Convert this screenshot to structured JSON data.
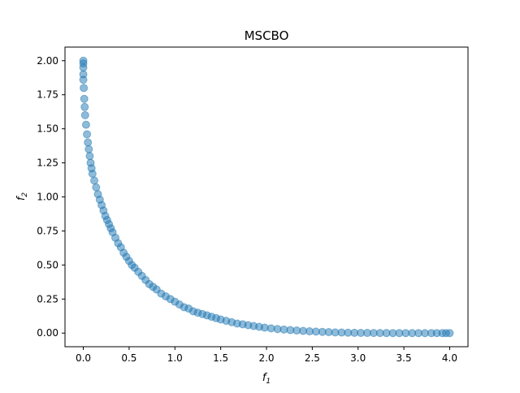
{
  "chart_data": {
    "type": "scatter",
    "title": "MSCBO",
    "xlabel_main": "f",
    "xlabel_sub": "1",
    "ylabel_main": "f",
    "ylabel_sub": "2",
    "xlim": [
      -0.2,
      4.2
    ],
    "ylim": [
      -0.1,
      2.1
    ],
    "xticks": [
      0.0,
      0.5,
      1.0,
      1.5,
      2.0,
      2.5,
      3.0,
      3.5,
      4.0
    ],
    "xtick_labels": [
      "0.0",
      "0.5",
      "1.0",
      "1.5",
      "2.0",
      "2.5",
      "3.0",
      "3.5",
      "4.0"
    ],
    "yticks": [
      0.0,
      0.25,
      0.5,
      0.75,
      1.0,
      1.25,
      1.5,
      1.75,
      2.0
    ],
    "ytick_labels": [
      "0.00",
      "0.25",
      "0.50",
      "0.75",
      "1.00",
      "1.25",
      "1.50",
      "1.75",
      "2.00"
    ],
    "grid": false,
    "marker_color": "#1f77b4",
    "marker_alpha": 0.5,
    "front_curve": "f2 = (sqrt(2) - sqrt(f1/2))^2",
    "series": [
      {
        "x_values": [
          0.0,
          0.0,
          0.0,
          0.0,
          0.0,
          0.005,
          0.01,
          0.015,
          0.02,
          0.03,
          0.04,
          0.05,
          0.06,
          0.07,
          0.08,
          0.09,
          0.1,
          0.12,
          0.14,
          0.16,
          0.18,
          0.2,
          0.22,
          0.24,
          0.26,
          0.28,
          0.3,
          0.32,
          0.35,
          0.38,
          0.41,
          0.44,
          0.47,
          0.5,
          0.53,
          0.56,
          0.6,
          0.64,
          0.68,
          0.72,
          0.76,
          0.8,
          0.85,
          0.9,
          0.95,
          1.0,
          1.05,
          1.1,
          1.15,
          1.2,
          1.25,
          1.3,
          1.35,
          1.4,
          1.45,
          1.5,
          1.56,
          1.62,
          1.68,
          1.74,
          1.8,
          1.86,
          1.92,
          1.98,
          2.05,
          2.12,
          2.19,
          2.26,
          2.33,
          2.4,
          2.47,
          2.54,
          2.61,
          2.68,
          2.75,
          2.82,
          2.89,
          2.96,
          3.03,
          3.1,
          3.17,
          3.24,
          3.31,
          3.38,
          3.45,
          3.52,
          3.59,
          3.66,
          3.73,
          3.8,
          3.86,
          3.92,
          3.96,
          4.0
        ],
        "y_values": [
          2.0,
          1.98,
          1.95,
          1.9,
          1.86,
          1.8,
          1.72,
          1.66,
          1.6,
          1.53,
          1.46,
          1.4,
          1.35,
          1.3,
          1.25,
          1.21,
          1.17,
          1.12,
          1.07,
          1.02,
          0.98,
          0.94,
          0.9,
          0.86,
          0.83,
          0.8,
          0.77,
          0.74,
          0.7,
          0.66,
          0.63,
          0.59,
          0.56,
          0.53,
          0.5,
          0.48,
          0.45,
          0.42,
          0.39,
          0.36,
          0.34,
          0.32,
          0.29,
          0.27,
          0.25,
          0.23,
          0.21,
          0.19,
          0.18,
          0.16,
          0.15,
          0.14,
          0.13,
          0.12,
          0.11,
          0.1,
          0.09,
          0.08,
          0.07,
          0.065,
          0.058,
          0.052,
          0.046,
          0.04,
          0.035,
          0.03,
          0.026,
          0.022,
          0.019,
          0.016,
          0.013,
          0.011,
          0.009,
          0.007,
          0.005,
          0.004,
          0.003,
          0.002,
          0.0015,
          0.001,
          0.0007,
          0.0005,
          0.0003,
          0.0002,
          0.0001,
          0.0,
          0.0,
          0.0,
          0.0,
          0.0,
          0.0,
          0.0,
          0.0,
          0.0
        ]
      }
    ]
  }
}
